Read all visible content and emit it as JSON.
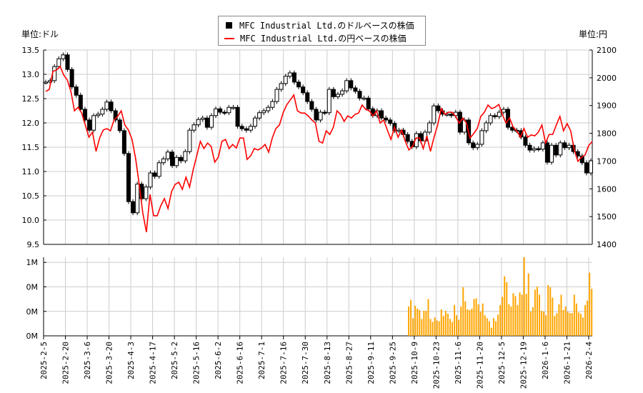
{
  "units": {
    "left": "単位:ドル",
    "right": "単位:円"
  },
  "legend": [
    {
      "label": "MFC Industrial Ltd.のドルベースの株価",
      "color": "#000000",
      "marker": "black-square"
    },
    {
      "label": "MFC Industrial Ltd.の円ベースの株価",
      "color": "#ff0000",
      "marker": "red-line"
    }
  ],
  "colors": {
    "grid": "#cccccc",
    "volume": "#ffa500",
    "yen_line": "#ff0000",
    "candle": "#000000"
  },
  "chart_data": [
    {
      "type": "candlestick",
      "x_range": [
        "2025-2-5",
        "2026-2-4"
      ],
      "x_ticks": [
        "2025-2-5",
        "2025-2-20",
        "2025-3-6",
        "2025-3-20",
        "2025-4-3",
        "2025-4-17",
        "2025-5-2",
        "2025-5-16",
        "2025-6-2",
        "2025-6-16",
        "2025-7-1",
        "2025-7-16",
        "2025-7-30",
        "2025-8-13",
        "2025-8-27",
        "2025-9-11",
        "2025-9-25",
        "2025-10-9",
        "2025-10-23",
        "2025-11-6",
        "2025-11-20",
        "2025-12-5",
        "2025-12-19",
        "2026-1-6",
        "2026-1-21",
        "2026-2-4"
      ],
      "ylim_left": [
        9.5,
        13.5
      ],
      "y_ticks_left": [
        "9.5",
        "10.0",
        "10.5",
        "11.0",
        "11.5",
        "12.0",
        "12.5",
        "13.0",
        "13.5"
      ],
      "ylim_right": [
        1400,
        2100
      ],
      "y_ticks_right": [
        "1400",
        "1500",
        "1600",
        "1700",
        "1800",
        "1900",
        "2000",
        "2100"
      ],
      "grid": true,
      "legend_position": "top-center",
      "series": [
        {
          "name": "MFC Industrial Ltd.のドルベースの株価",
          "axis": "left",
          "style": "candlestick",
          "close": [
            12.84,
            12.87,
            13.16,
            13.32,
            13.4,
            13.1,
            12.74,
            12.57,
            12.28,
            12.06,
            11.85,
            12.15,
            12.18,
            12.28,
            12.43,
            12.25,
            12.06,
            11.84,
            11.37,
            10.38,
            10.15,
            10.74,
            10.44,
            10.68,
            10.97,
            10.9,
            11.18,
            11.26,
            11.4,
            11.12,
            11.29,
            11.22,
            11.41,
            11.85,
            11.96,
            12.07,
            12.1,
            11.91,
            12.15,
            12.29,
            12.22,
            12.21,
            12.32,
            12.32,
            11.93,
            11.88,
            11.85,
            11.93,
            12.1,
            12.21,
            12.25,
            12.32,
            12.44,
            12.69,
            12.81,
            12.96,
            13.03,
            12.84,
            12.74,
            12.62,
            12.44,
            12.28,
            12.06,
            12.22,
            12.21,
            12.69,
            12.54,
            12.59,
            12.66,
            12.87,
            12.72,
            12.65,
            12.51,
            12.51,
            12.29,
            12.15,
            12.25,
            12.1,
            12.06,
            11.99,
            11.84,
            11.85,
            11.76,
            11.62,
            11.51,
            11.78,
            11.63,
            11.81,
            12.0,
            12.35,
            12.25,
            12.18,
            12.18,
            12.15,
            12.22,
            11.81,
            12.06,
            11.59,
            11.49,
            11.56,
            11.84,
            12.0,
            12.15,
            12.13,
            12.22,
            12.28,
            11.91,
            11.85,
            11.84,
            11.71,
            11.54,
            11.44,
            11.47,
            11.46,
            11.59,
            11.19,
            11.54,
            11.34,
            11.59,
            11.49,
            11.54,
            11.41,
            11.32,
            11.18,
            10.97,
            11.22
          ]
        },
        {
          "name": "MFC Industrial Ltd.の円ベースの株価",
          "axis": "right",
          "style": "line",
          "values": [
            1951,
            1958,
            2023,
            2028,
            2041,
            2010,
            1992,
            1951,
            1881,
            1894,
            1873,
            1830,
            1786,
            1804,
            1735,
            1783,
            1812,
            1817,
            1809,
            1848,
            1861,
            1881,
            1830,
            1812,
            1778,
            1709,
            1616,
            1513,
            1444,
            1580,
            1503,
            1503,
            1539,
            1565,
            1529,
            1590,
            1616,
            1624,
            1598,
            1642,
            1606,
            1668,
            1719,
            1771,
            1745,
            1765,
            1753,
            1696,
            1714,
            1771,
            1778,
            1745,
            1760,
            1747,
            1783,
            1783,
            1706,
            1719,
            1745,
            1740,
            1747,
            1760,
            1732,
            1783,
            1817,
            1830,
            1873,
            1902,
            1920,
            1938,
            1881,
            1873,
            1873,
            1863,
            1848,
            1837,
            1771,
            1765,
            1809,
            1796,
            1822,
            1881,
            1868,
            1843,
            1863,
            1855,
            1868,
            1873,
            1902,
            1886,
            1881,
            1863,
            1881,
            1837,
            1848,
            1812,
            1778,
            1822,
            1786,
            1812,
            1771,
            1740,
            1753,
            1783,
            1783,
            1745,
            1791,
            1735,
            1786,
            1830,
            1889,
            1868,
            1876,
            1876,
            1861,
            1837,
            1855,
            1837,
            1783,
            1799,
            1817,
            1861,
            1876,
            1902,
            1889,
            1894,
            1904,
            1868,
            1837,
            1855,
            1822,
            1809,
            1786,
            1817,
            1786,
            1794,
            1791,
            1804,
            1830,
            1765,
            1796,
            1796,
            1830,
            1861,
            1809,
            1835,
            1809,
            1740,
            1699,
            1714,
            1722,
            1756,
            1771
          ]
        }
      ]
    },
    {
      "type": "bar",
      "x_range": [
        "2025-2-5",
        "2026-2-4"
      ],
      "bars_start": "2025-10-6",
      "ylim": [
        0,
        1.07
      ],
      "y_ticks": [
        {
          "value": 0,
          "label": "0M"
        },
        {
          "value": 0.333,
          "label": "0M"
        },
        {
          "value": 0.667,
          "label": "0M"
        },
        {
          "value": 1.0,
          "label": "1M"
        }
      ],
      "grid": true,
      "values": [
        0.4,
        0.49,
        0.24,
        0.41,
        0.37,
        0.35,
        0.23,
        0.34,
        0.34,
        0.5,
        0.23,
        0.19,
        0.25,
        0.21,
        0.2,
        0.36,
        0.27,
        0.34,
        0.3,
        0.23,
        0.19,
        0.42,
        0.28,
        0.22,
        0.4,
        0.66,
        0.47,
        0.36,
        0.35,
        0.37,
        0.5,
        0.51,
        0.43,
        0.33,
        0.44,
        0.28,
        0.24,
        0.2,
        0.11,
        0.24,
        0.2,
        0.29,
        0.42,
        0.53,
        0.81,
        0.73,
        0.43,
        0.4,
        0.58,
        0.54,
        0.42,
        0.59,
        0.56,
        1.07,
        0.57,
        0.85,
        0.33,
        0.39,
        0.63,
        0.67,
        0.56,
        0.34,
        0.33,
        0.28,
        0.69,
        0.66,
        0.52,
        0.27,
        0.31,
        0.43,
        0.56,
        0.35,
        0.4,
        0.33,
        0.31,
        0.31,
        0.56,
        0.44,
        0.32,
        0.3,
        0.25,
        0.42,
        0.48,
        0.86,
        0.64
      ]
    }
  ]
}
